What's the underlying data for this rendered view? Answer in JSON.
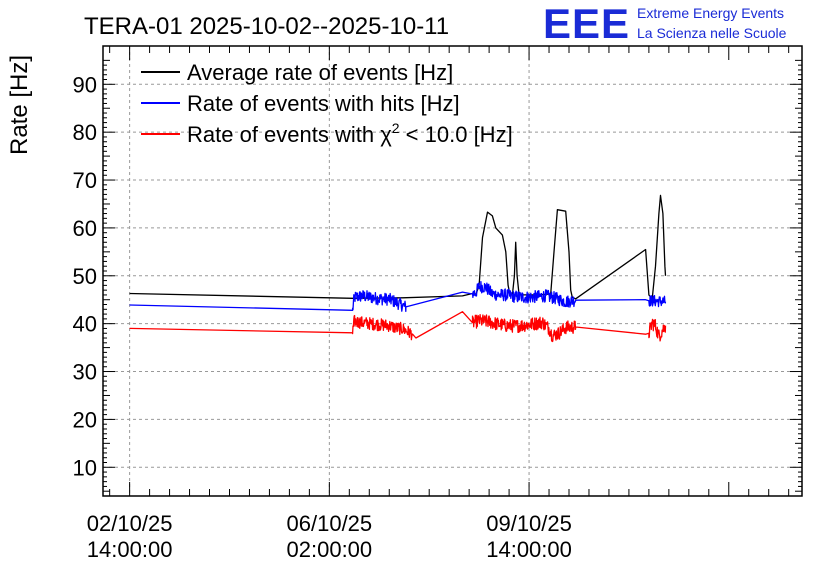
{
  "header": {
    "title": "TERA-01 2025-10-02--2025-10-11",
    "logo_text": "EEE",
    "logo_line1": "Extreme Energy Events",
    "logo_line2": "La Scienza nelle Scuole"
  },
  "colors": {
    "average": "#000000",
    "hits": "#0000ff",
    "chi2": "#ff0000",
    "logo": "#1a2bd6",
    "grid": "#999999"
  },
  "chart_data": {
    "type": "line",
    "title": "TERA-01 2025-10-02--2025-10-11",
    "xlabel": "",
    "ylabel": "Rate [Hz]",
    "xlim_hours": [
      -8,
      202
    ],
    "ylim": [
      4,
      98
    ],
    "grid": true,
    "legend_position": "top-left",
    "y_ticks": [
      10,
      20,
      30,
      40,
      50,
      60,
      70,
      80,
      90
    ],
    "x_ticks": [
      {
        "hour": 0,
        "line1": "02/10/25",
        "line2": "14:00:00"
      },
      {
        "hour": 60,
        "line1": "06/10/25",
        "line2": "02:00:00"
      },
      {
        "hour": 120,
        "line1": "09/10/25",
        "line2": "14:00:00"
      }
    ],
    "legend": [
      {
        "key": "average",
        "label": "Average rate of events [Hz]"
      },
      {
        "key": "hits",
        "label": "Rate of events with hits [Hz]"
      },
      {
        "key": "chi2",
        "label_pre": "Rate of events with χ",
        "label_sup": "2",
        "label_post": " < 10.0 [Hz]"
      }
    ],
    "series": [
      {
        "name": "Average rate of events [Hz]",
        "color": "#000000",
        "points": [
          [
            0,
            46.3
          ],
          [
            67,
            45.3
          ],
          [
            82,
            45.4
          ],
          [
            100,
            45.8
          ],
          [
            103,
            46.3
          ],
          [
            104,
            46.0
          ],
          [
            105,
            48
          ],
          [
            106,
            58
          ],
          [
            107.5,
            63.3
          ],
          [
            109,
            62.5
          ],
          [
            110,
            60
          ],
          [
            112,
            58.5
          ],
          [
            113,
            55
          ],
          [
            113.7,
            48
          ],
          [
            114.3,
            46
          ],
          [
            115,
            46
          ],
          [
            115.6,
            50
          ],
          [
            116,
            57
          ],
          [
            116.4,
            50
          ],
          [
            117,
            46
          ],
          [
            123,
            46
          ],
          [
            126.5,
            46.2
          ],
          [
            127.5,
            55
          ],
          [
            128.5,
            63.8
          ],
          [
            131,
            63.5
          ],
          [
            132,
            55
          ],
          [
            132.5,
            47
          ],
          [
            133,
            45.5
          ],
          [
            134,
            45.2
          ],
          [
            155,
            55.5
          ],
          [
            156,
            46
          ],
          [
            157,
            45.2
          ],
          [
            158,
            52
          ],
          [
            159,
            63
          ],
          [
            159.5,
            66.8
          ],
          [
            160.2,
            63
          ],
          [
            160.8,
            52
          ],
          [
            161,
            50
          ]
        ]
      },
      {
        "name": "Rate of events with hits [Hz]",
        "color": "#0000ff",
        "noisy": [
          [
            67,
            83,
            1.3
          ],
          [
            103,
            134,
            1.3
          ],
          [
            156,
            161,
            1.2
          ]
        ],
        "points": [
          [
            0,
            43.9
          ],
          [
            67,
            42.8
          ],
          [
            67.5,
            45.5
          ],
          [
            70,
            45.8
          ],
          [
            75,
            45.2
          ],
          [
            78,
            45.1
          ],
          [
            80,
            44.5
          ],
          [
            82,
            43.8
          ],
          [
            83,
            43.5
          ],
          [
            100,
            46.6
          ],
          [
            103,
            46.2
          ],
          [
            104,
            46.5
          ],
          [
            105,
            47.8
          ],
          [
            107,
            47.6
          ],
          [
            109,
            46.2
          ],
          [
            111,
            46.0
          ],
          [
            113,
            46.0
          ],
          [
            116,
            45.6
          ],
          [
            120,
            45.5
          ],
          [
            125,
            45.8
          ],
          [
            128,
            45.3
          ],
          [
            131,
            44.6
          ],
          [
            134,
            44.9
          ],
          [
            155,
            45.0
          ],
          [
            156,
            44.8
          ],
          [
            161,
            44.6
          ]
        ]
      },
      {
        "name": "Rate of events with χ² < 10.0 [Hz]",
        "color": "#ff0000",
        "noisy": [
          [
            67,
            85,
            1.3
          ],
          [
            103,
            134,
            1.4
          ],
          [
            156,
            161,
            1.5
          ]
        ],
        "points": [
          [
            0,
            39.0
          ],
          [
            67,
            38.1
          ],
          [
            67.5,
            40.5
          ],
          [
            70,
            40.2
          ],
          [
            75,
            39.8
          ],
          [
            78,
            39.6
          ],
          [
            80,
            39.1
          ],
          [
            82,
            38.9
          ],
          [
            85,
            37.8
          ],
          [
            86,
            37.0
          ],
          [
            100,
            42.5
          ],
          [
            103,
            40.2
          ],
          [
            105,
            40.6
          ],
          [
            108,
            40.4
          ],
          [
            110,
            40.0
          ],
          [
            113,
            39.6
          ],
          [
            116,
            39.5
          ],
          [
            120,
            39.8
          ],
          [
            124,
            40.3
          ],
          [
            126,
            39.0
          ],
          [
            127,
            37.5
          ],
          [
            129,
            38.0
          ],
          [
            131,
            39.2
          ],
          [
            134,
            39.3
          ],
          [
            155,
            37.8
          ],
          [
            156,
            38.0
          ],
          [
            157,
            40.2
          ],
          [
            158,
            39.5
          ],
          [
            159,
            37.4
          ],
          [
            160,
            38.6
          ],
          [
            161,
            39.6
          ]
        ]
      }
    ]
  }
}
